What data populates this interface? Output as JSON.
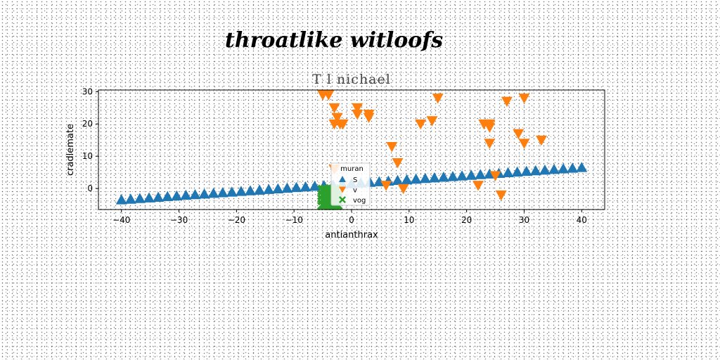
{
  "suptitle": "throatlike witloofs",
  "chart_data": {
    "type": "scatter",
    "title": "T l nichael",
    "xlabel": "antianthrax",
    "ylabel": "cradlemate",
    "xlim": [
      -44,
      44
    ],
    "ylim": [
      -6.5,
      30.5
    ],
    "xticks": [
      -40,
      -30,
      -20,
      -10,
      0,
      10,
      20,
      30,
      40
    ],
    "yticks": [
      0,
      10,
      20,
      30
    ],
    "grid": false,
    "legend": {
      "title": "muran",
      "position": "lower-center"
    },
    "series": [
      {
        "name": "S",
        "marker": "triangle-up",
        "color": "#1f77b4",
        "x": [
          -40,
          -38.4,
          -36.8,
          -35.2,
          -33.6,
          -32,
          -30.4,
          -28.8,
          -27.2,
          -25.6,
          -24,
          -22.4,
          -20.8,
          -19.2,
          -17.6,
          -16,
          -14.4,
          -12.8,
          -11.2,
          -9.6,
          -8,
          -6.4,
          -4.8,
          -3.2,
          -1.6,
          0,
          1.6,
          3.2,
          4.8,
          6.4,
          8,
          9.6,
          11.2,
          12.8,
          14.4,
          16,
          17.6,
          19.2,
          20.8,
          22.4,
          24,
          25.6,
          27.2,
          28.8,
          30.4,
          32,
          33.6,
          35.2,
          36.8,
          38.4,
          40
        ],
        "y": [
          -3.5,
          -3.3,
          -3.1,
          -2.9,
          -2.7,
          -2.5,
          -2.3,
          -2.1,
          -1.9,
          -1.7,
          -1.5,
          -1.3,
          -1.1,
          -0.9,
          -0.7,
          -0.5,
          -0.3,
          -0.1,
          0.1,
          0.3,
          0.5,
          0.7,
          0.9,
          1.1,
          1.3,
          1.5,
          1.7,
          1.9,
          2.1,
          2.3,
          2.5,
          2.7,
          2.9,
          3.1,
          3.3,
          3.5,
          3.7,
          3.9,
          4.1,
          4.3,
          4.5,
          4.7,
          4.9,
          5.1,
          5.3,
          5.5,
          5.7,
          5.9,
          6.1,
          6.3,
          6.5
        ]
      },
      {
        "name": "v",
        "marker": "triangle-down",
        "color": "#ff7f0e",
        "x": [
          -5,
          -4,
          -3,
          -2.5,
          -2,
          -3,
          -1.5,
          1,
          1,
          3,
          3,
          6,
          7,
          8,
          9,
          12,
          14,
          15,
          22,
          23,
          24,
          24,
          24,
          25,
          26,
          27,
          29,
          30,
          30,
          33,
          -3
        ],
        "y": [
          29,
          29,
          25,
          22,
          20,
          20,
          20,
          25,
          23,
          23,
          22,
          1,
          13,
          8,
          0,
          20,
          21,
          28,
          1,
          20,
          20,
          19,
          14,
          4,
          -2,
          27,
          17,
          14,
          28,
          15,
          6
        ]
      },
      {
        "name": "vog",
        "marker": "x-filled",
        "color": "#2ca02c",
        "x": [
          -5,
          -4.5,
          -4,
          -3.5,
          -3,
          -2.5,
          -5,
          -4.5,
          -4,
          -3.5,
          -3,
          -2.5,
          -5,
          -4.5,
          -4,
          -3.5,
          -3,
          -2.5,
          -5,
          -4.5,
          -4,
          -3.5,
          -3,
          -2.5,
          -4.2,
          -3.2
        ],
        "y": [
          -0.5,
          -0.5,
          -0.5,
          -0.5,
          -0.5,
          -0.5,
          -2,
          -2,
          -2,
          -2,
          -2,
          -2,
          -3.5,
          -3.5,
          -3.5,
          -3.5,
          -3.5,
          -3.5,
          -5,
          -5,
          -5,
          -5,
          -5,
          -5,
          -1.2,
          -4.2
        ]
      }
    ]
  }
}
